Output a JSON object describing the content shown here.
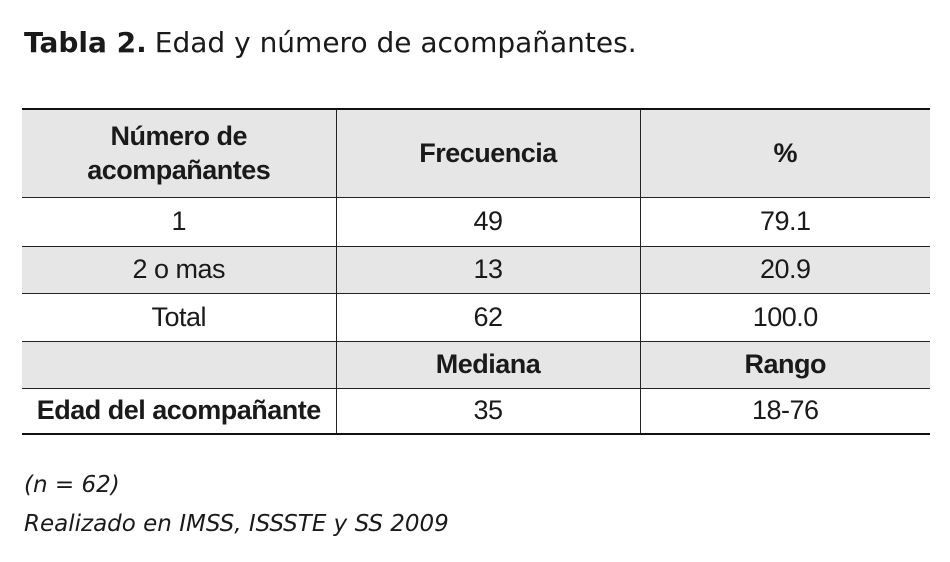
{
  "title": {
    "label": "Tabla 2.",
    "text": "Edad y número de acompañantes."
  },
  "table": {
    "header": [
      "Número de acompañantes",
      "Frecuencia",
      "%"
    ],
    "rows": [
      [
        "1",
        "49",
        "79.1"
      ],
      [
        "2 o mas",
        "13",
        "20.9"
      ],
      [
        "Total",
        "62",
        "100.0"
      ]
    ],
    "subheader": [
      "Mediana",
      "Rango"
    ],
    "age_row": [
      "Edad del acompañante",
      "35",
      "18-76"
    ]
  },
  "notes": [
    "(n = 62)",
    "Realizado en IMSS, ISSSTE y SS 2009"
  ]
}
